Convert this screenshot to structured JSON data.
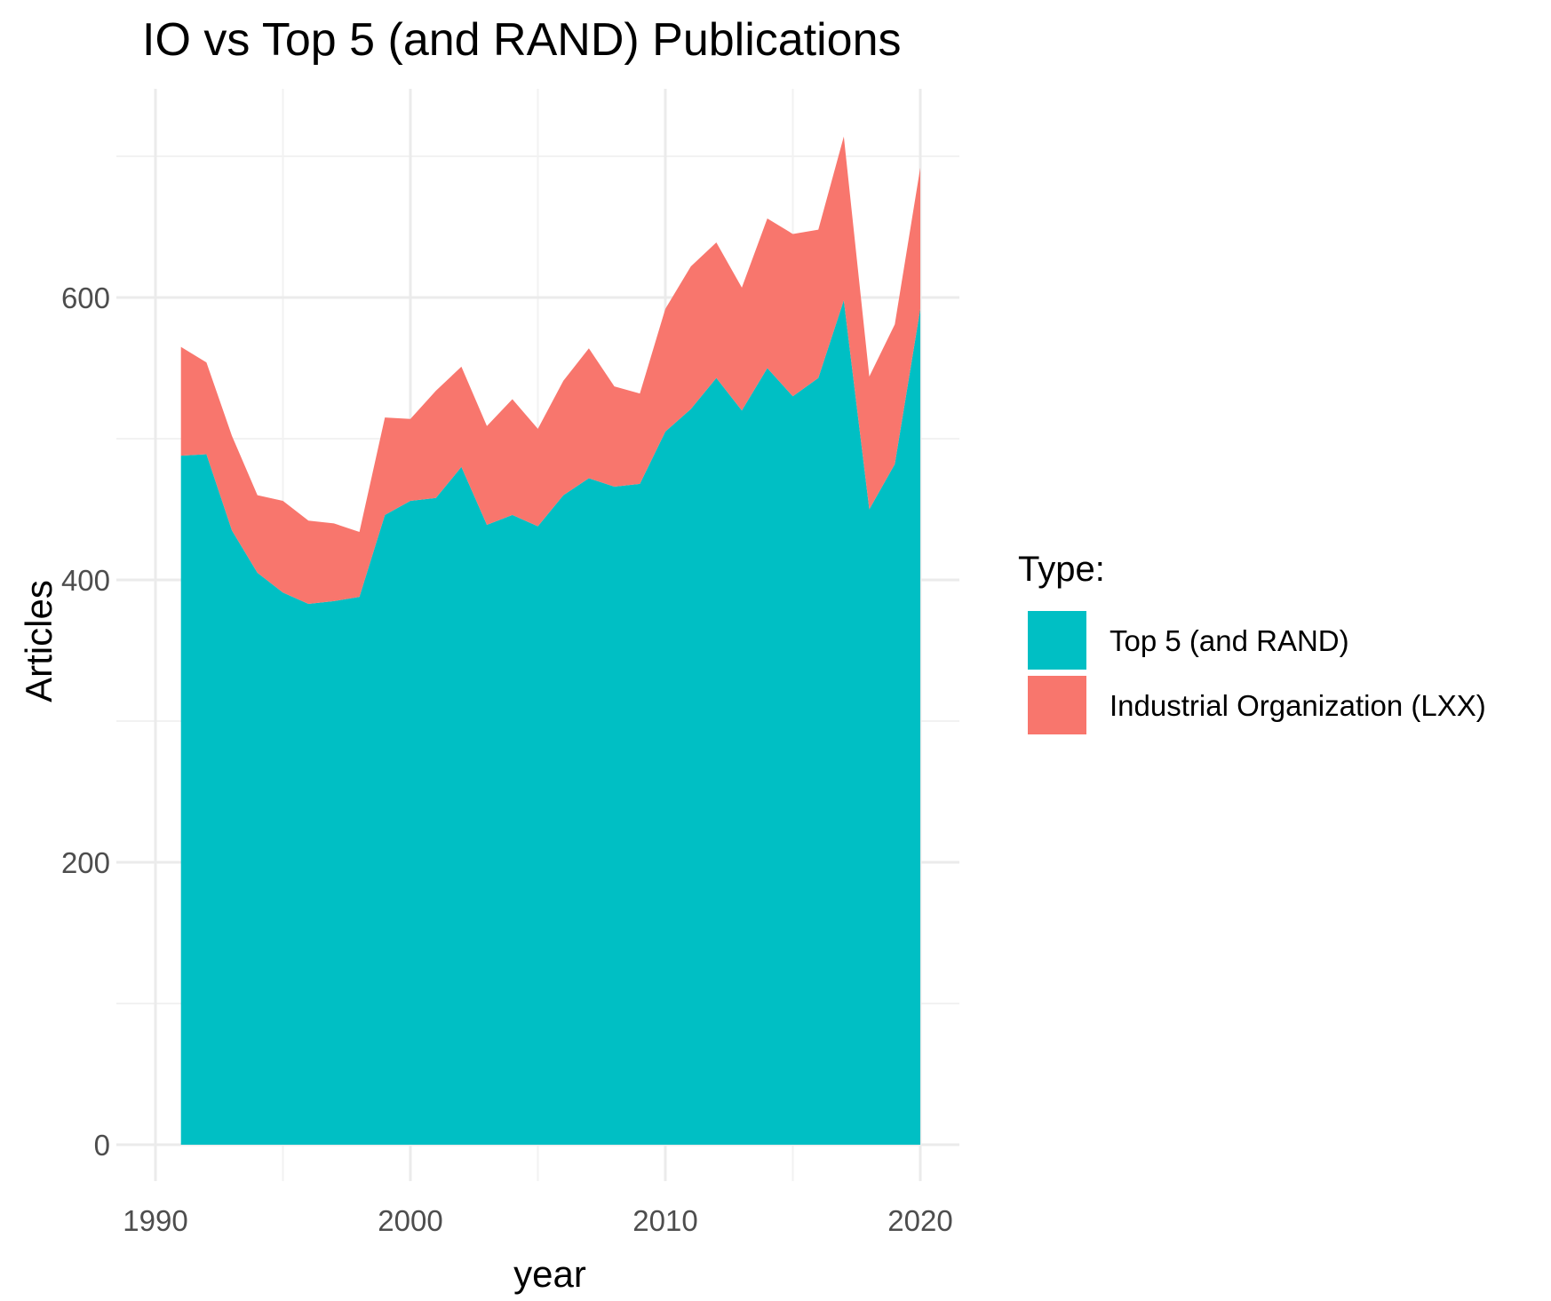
{
  "chart_data": {
    "type": "area",
    "stacked": true,
    "title": "IO vs Top 5 (and RAND) Publications",
    "xlabel": "year",
    "ylabel": "Articles",
    "xlim": [
      1990,
      2021
    ],
    "ylim": [
      0,
      720
    ],
    "x_ticks": [
      1990,
      2000,
      2010,
      2020
    ],
    "y_ticks": [
      0,
      200,
      400,
      600
    ],
    "grid": true,
    "legend": {
      "title": "Type:",
      "position": "right"
    },
    "x": [
      1991,
      1992,
      1993,
      1994,
      1995,
      1996,
      1997,
      1998,
      1999,
      2000,
      2001,
      2002,
      2003,
      2004,
      2005,
      2006,
      2007,
      2008,
      2009,
      2010,
      2011,
      2012,
      2013,
      2014,
      2015,
      2016,
      2017,
      2018,
      2019,
      2020
    ],
    "series": [
      {
        "name": "Top 5 (and RAND)",
        "color": "#00BFC4",
        "values": [
          488,
          489,
          435,
          405,
          391,
          383,
          385,
          388,
          446,
          456,
          458,
          480,
          439,
          446,
          438,
          460,
          472,
          466,
          468,
          505,
          521,
          543,
          520,
          550,
          530,
          543,
          598,
          450,
          482,
          592
        ]
      },
      {
        "name": "Industrial Organization (LXX)",
        "color": "#F8766D",
        "values": [
          77,
          65,
          67,
          55,
          65,
          59,
          55,
          46,
          69,
          58,
          76,
          71,
          70,
          82,
          69,
          81,
          92,
          71,
          64,
          87,
          101,
          96,
          87,
          106,
          115,
          105,
          116,
          94,
          99,
          100
        ]
      }
    ]
  }
}
